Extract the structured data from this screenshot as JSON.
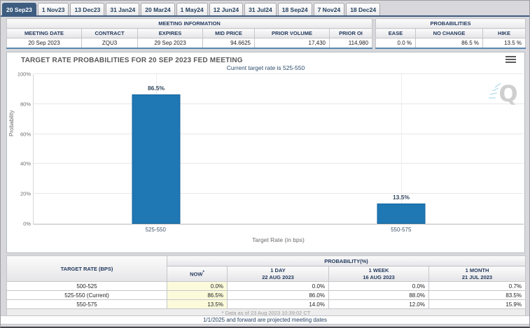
{
  "tabs": [
    {
      "label": "20 Sep23",
      "selected": true
    },
    {
      "label": "1 Nov23",
      "selected": false
    },
    {
      "label": "13 Dec23",
      "selected": false
    },
    {
      "label": "31 Jan24",
      "selected": false
    },
    {
      "label": "20 Mar24",
      "selected": false
    },
    {
      "label": "1 May24",
      "selected": false
    },
    {
      "label": "12 Jun24",
      "selected": false
    },
    {
      "label": "31 Jul24",
      "selected": false
    },
    {
      "label": "18 Sep24",
      "selected": false
    },
    {
      "label": "7 Nov24",
      "selected": false
    },
    {
      "label": "18 Dec24",
      "selected": false
    }
  ],
  "meeting_info": {
    "title": "MEETING INFORMATION",
    "headers": [
      "MEETING DATE",
      "CONTRACT",
      "EXPIRES",
      "MID PRICE",
      "PRIOR VOLUME",
      "PRIOR OI"
    ],
    "values": [
      "20 Sep 2023",
      "ZQU3",
      "29 Sep 2023",
      "94.6625",
      "17,430",
      "114,980"
    ]
  },
  "probabilities_summary": {
    "title": "PROBABILITIES",
    "headers": [
      "EASE",
      "NO CHANGE",
      "HIKE"
    ],
    "values": [
      "0.0 %",
      "86.5 %",
      "13.5 %"
    ]
  },
  "chart_data": {
    "type": "bar",
    "title": "TARGET RATE PROBABILITIES FOR 20 SEP 2023 FED MEETING",
    "subtitle": "Current target rate is 525-550",
    "categories": [
      "525-550",
      "550-575"
    ],
    "values": [
      86.5,
      13.5
    ],
    "bar_labels": [
      "86.5%",
      "13.5%"
    ],
    "xlabel": "Target Rate (in bps)",
    "ylabel": "Probability",
    "ylim": [
      0,
      100
    ],
    "yticks": [
      "0%",
      "20%",
      "40%",
      "60%",
      "80%",
      "100%"
    ],
    "grid": true,
    "legend": "none",
    "bar_color": "#1f77b4",
    "watermark": "Q"
  },
  "bottom_table": {
    "col1_header": "TARGET RATE (BPS)",
    "group_header": "PROBABILITY(%)",
    "columns": [
      {
        "label": "NOW",
        "sup": "*",
        "sub": ""
      },
      {
        "label": "1 DAY",
        "sup": "",
        "sub": "22 AUG 2023"
      },
      {
        "label": "1 WEEK",
        "sup": "",
        "sub": "16 AUG 2023"
      },
      {
        "label": "1 MONTH",
        "sup": "",
        "sub": "21 JUL 2023"
      }
    ],
    "rows": [
      {
        "rate": "500-525",
        "now": "0.0%",
        "day": "0.0%",
        "week": "0.0%",
        "month": "0.7%"
      },
      {
        "rate": "525-550 (Current)",
        "now": "86.5%",
        "day": "86.0%",
        "week": "88.0%",
        "month": "83.5%"
      },
      {
        "rate": "550-575",
        "now": "13.5%",
        "day": "14.0%",
        "week": "12.0%",
        "month": "15.9%"
      }
    ],
    "footnote": "* Data as of 23 Aug 2023 10:39:02 CT"
  },
  "footer": {
    "note": "1/1/2025 and forward are projected meeting dates"
  },
  "colors": {
    "selected_tab": "#3d5c80",
    "bar": "#1f77b4",
    "now_highlight": "#fbfbdc",
    "header_text": "#23395d"
  }
}
